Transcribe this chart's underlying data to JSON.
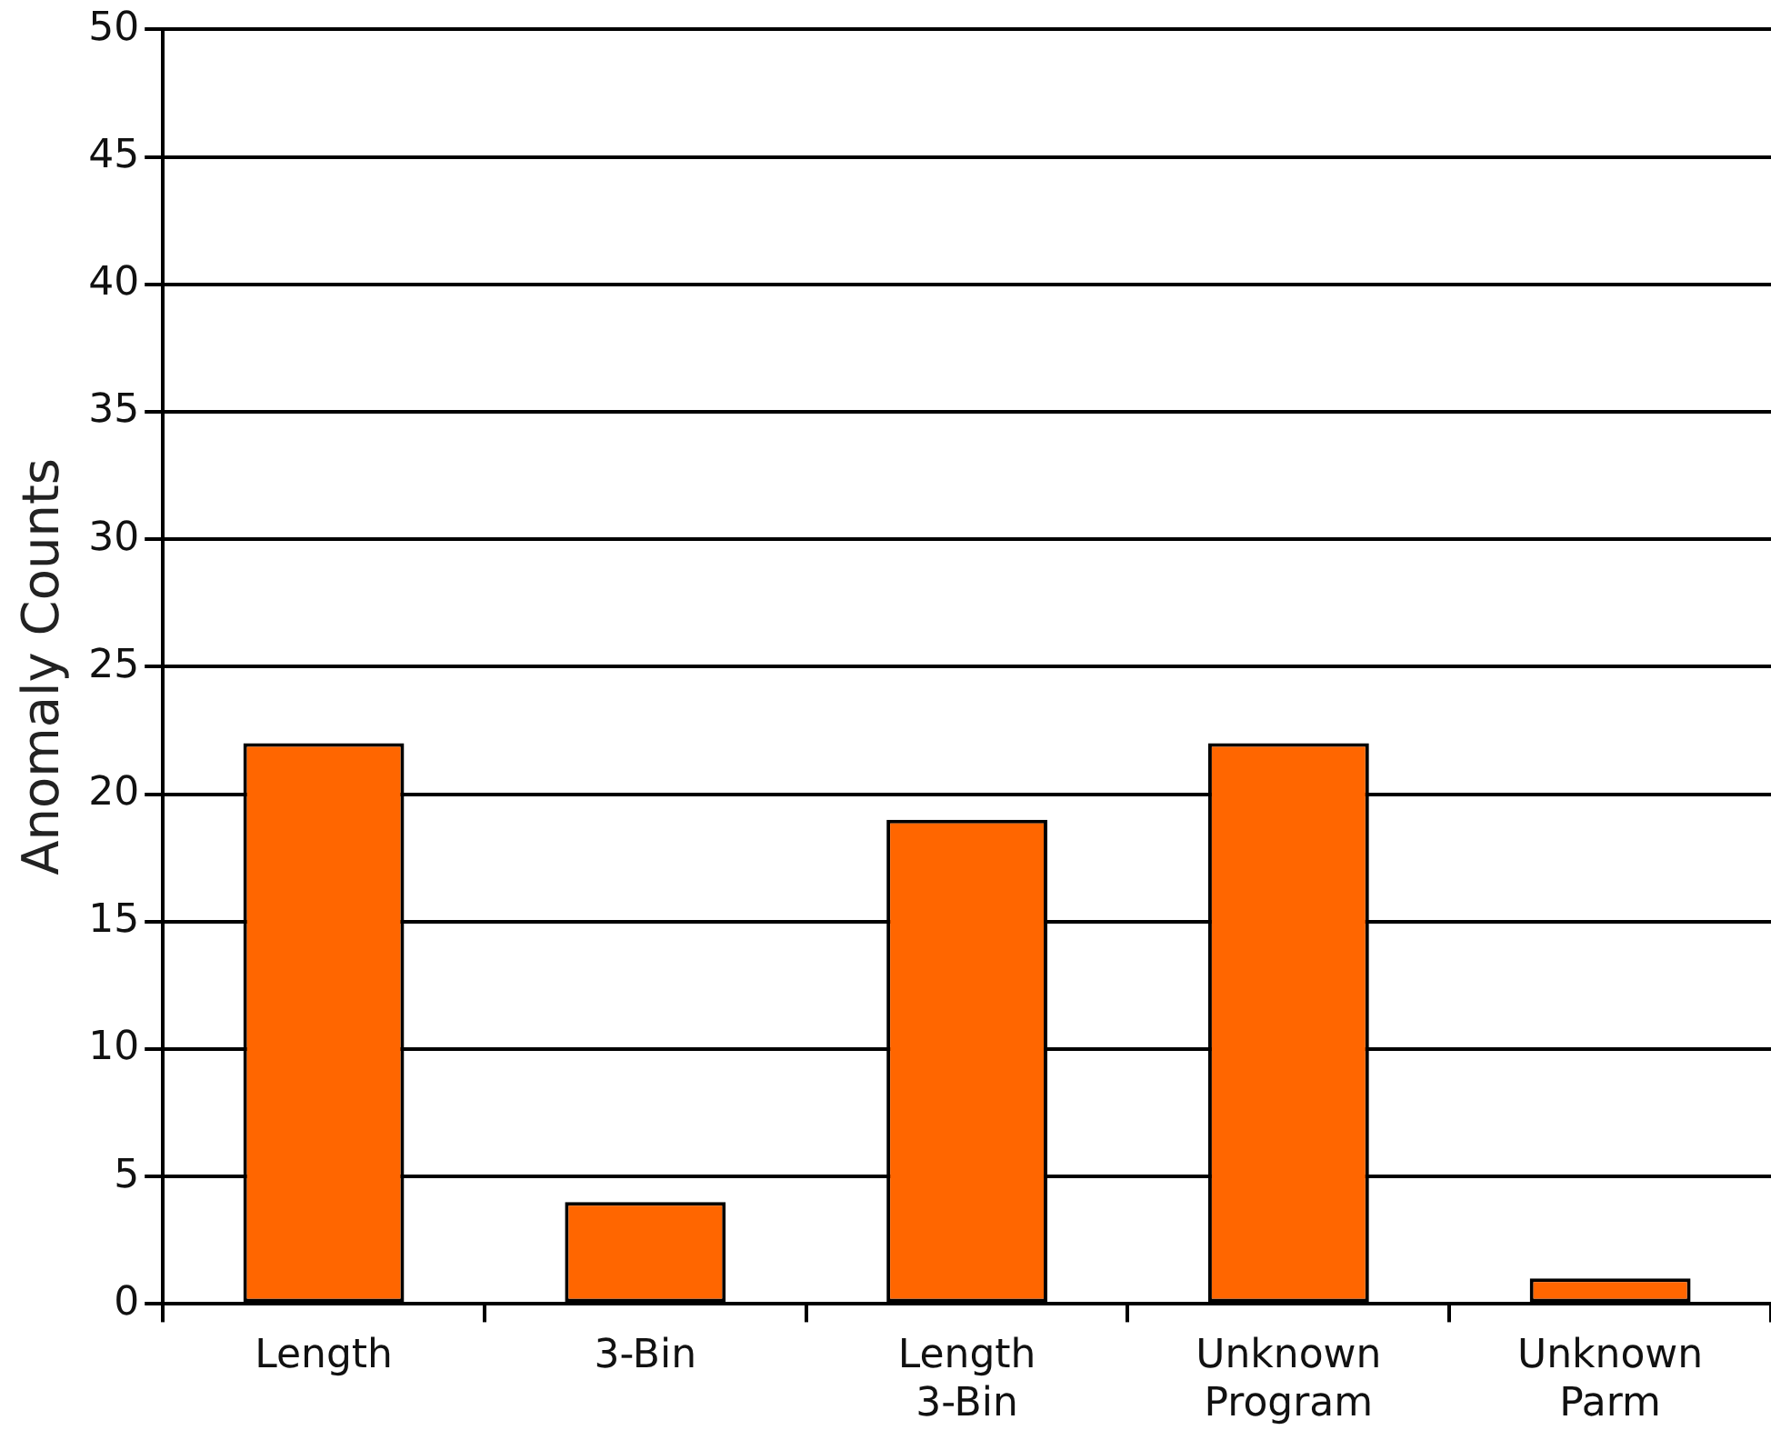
{
  "chart_data": {
    "type": "bar",
    "ylabel": "Anomaly Counts",
    "categories": [
      "Length",
      "3-Bin",
      "Length 3-Bin",
      "Unknown Program",
      "Unknown Parm"
    ],
    "values": [
      22,
      4,
      19,
      22,
      1
    ],
    "color": "#ff6600",
    "ylim": [
      0,
      50
    ],
    "yticks": [
      0,
      5,
      10,
      15,
      20,
      25,
      30,
      35,
      40,
      45,
      50
    ],
    "grid": "y",
    "legend": false
  }
}
